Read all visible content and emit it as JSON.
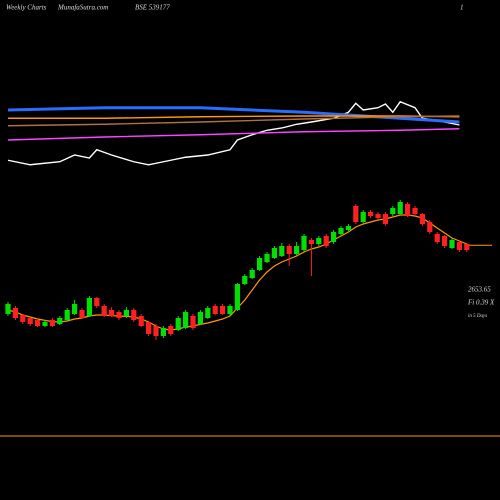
{
  "header": {
    "left": "Weekly Charts",
    "site": "MunafaSutra.com",
    "symbol": "BSE 539177",
    "right": "1"
  },
  "chart_data": [
    {
      "type": "candlestick",
      "up_color": "#00e000",
      "down_color": "#ff2020",
      "ma_color": "#ff9900",
      "ylim": [
        2080,
        2980
      ],
      "open": [
        2310,
        2340,
        2305,
        2290,
        2280,
        2250,
        2280,
        2260,
        2280,
        2310,
        2330,
        2300,
        2390,
        2350,
        2330,
        2320,
        2300,
        2330,
        2300,
        2270,
        2250,
        2200,
        2250,
        2230,
        2240,
        2300,
        2260,
        2290,
        2350,
        2350,
        2310,
        2330,
        2460,
        2490,
        2530,
        2570,
        2590,
        2600,
        2650,
        2610,
        2630,
        2680,
        2660,
        2700,
        2670,
        2710,
        2730,
        2850,
        2770,
        2820,
        2810,
        2810,
        2810,
        2810,
        2860,
        2840,
        2810,
        2770,
        2710,
        2700,
        2640,
        2670,
        2660
      ],
      "high": [
        2370,
        2350,
        2310,
        2295,
        2285,
        2280,
        2290,
        2300,
        2340,
        2380,
        2340,
        2400,
        2395,
        2360,
        2345,
        2330,
        2345,
        2340,
        2310,
        2275,
        2260,
        2250,
        2260,
        2300,
        2330,
        2310,
        2330,
        2350,
        2360,
        2360,
        2360,
        2465,
        2510,
        2540,
        2600,
        2620,
        2650,
        2665,
        2660,
        2670,
        2710,
        2690,
        2700,
        2710,
        2730,
        2750,
        2760,
        2860,
        2830,
        2830,
        2820,
        2820,
        2850,
        2880,
        2870,
        2850,
        2815,
        2780,
        2720,
        2705,
        2690,
        2680,
        2665
      ],
      "low": [
        2300,
        2280,
        2260,
        2250,
        2245,
        2245,
        2245,
        2255,
        2275,
        2305,
        2285,
        2295,
        2340,
        2295,
        2295,
        2280,
        2290,
        2270,
        2245,
        2200,
        2180,
        2190,
        2200,
        2225,
        2235,
        2230,
        2255,
        2285,
        2305,
        2305,
        2300,
        2325,
        2455,
        2485,
        2525,
        2565,
        2585,
        2595,
        2550,
        2600,
        2620,
        2500,
        2650,
        2640,
        2660,
        2700,
        2720,
        2760,
        2765,
        2790,
        2785,
        2750,
        2800,
        2805,
        2795,
        2800,
        2750,
        2710,
        2660,
        2640,
        2635,
        2620,
        2620
      ],
      "close": [
        2360,
        2290,
        2270,
        2260,
        2250,
        2270,
        2250,
        2290,
        2330,
        2360,
        2290,
        2390,
        2350,
        2300,
        2300,
        2290,
        2330,
        2280,
        2250,
        2210,
        2200,
        2240,
        2210,
        2290,
        2320,
        2240,
        2320,
        2340,
        2310,
        2310,
        2350,
        2460,
        2500,
        2530,
        2590,
        2610,
        2640,
        2650,
        2610,
        2650,
        2700,
        2660,
        2690,
        2650,
        2720,
        2740,
        2750,
        2770,
        2820,
        2800,
        2790,
        2760,
        2840,
        2870,
        2800,
        2810,
        2760,
        2720,
        2670,
        2650,
        2680,
        2630,
        2630
      ],
      "ma": [
        2330,
        2320,
        2305,
        2295,
        2285,
        2278,
        2272,
        2270,
        2275,
        2285,
        2290,
        2300,
        2305,
        2305,
        2302,
        2300,
        2298,
        2295,
        2285,
        2270,
        2250,
        2235,
        2230,
        2235,
        2245,
        2250,
        2258,
        2265,
        2275,
        2285,
        2300,
        2340,
        2380,
        2430,
        2480,
        2520,
        2550,
        2570,
        2585,
        2600,
        2620,
        2635,
        2645,
        2660,
        2680,
        2700,
        2720,
        2745,
        2760,
        2770,
        2780,
        2785,
        2795,
        2805,
        2805,
        2800,
        2790,
        2765,
        2740,
        2715,
        2690,
        2675,
        2660
      ],
      "last_price": 2653.65,
      "last_label": "2653.65",
      "note1": "Fi 0.39 X",
      "note2": "in 5 Days"
    },
    {
      "type": "line",
      "ylim": [
        0,
        100
      ],
      "series": [
        {
          "name": "white",
          "color": "#ffffff",
          "x": [
            0,
            3,
            7,
            9,
            11,
            12,
            14,
            17,
            19,
            22,
            24,
            27,
            30,
            31,
            33,
            35,
            37,
            39,
            41,
            44,
            46,
            47,
            48,
            50,
            51,
            52,
            53,
            55,
            56,
            59,
            61
          ],
          "values": [
            13,
            7,
            11,
            20,
            16,
            27,
            20,
            11,
            7,
            13,
            17,
            20,
            27,
            40,
            47,
            53,
            56,
            61,
            64,
            69,
            77,
            89,
            80,
            83,
            88,
            77,
            91,
            83,
            69,
            64,
            60
          ]
        },
        {
          "name": "blue",
          "color": "#2a6cff",
          "x": [
            0,
            13,
            26,
            40,
            53,
            61
          ],
          "values": [
            80,
            83,
            83,
            77,
            69,
            64
          ]
        },
        {
          "name": "orange",
          "color": "#ff9900",
          "x": [
            0,
            13,
            26,
            40,
            53,
            61
          ],
          "values": [
            69,
            69,
            71,
            72,
            72,
            71
          ]
        },
        {
          "name": "brown",
          "color": "#b07040",
          "x": [
            0,
            13,
            26,
            40,
            53,
            61
          ],
          "values": [
            59,
            61,
            64,
            68,
            71,
            72
          ]
        },
        {
          "name": "magenta",
          "color": "#ff44ff",
          "x": [
            0,
            13,
            26,
            40,
            53,
            61
          ],
          "values": [
            40,
            44,
            47,
            51,
            53,
            55
          ]
        }
      ]
    }
  ]
}
